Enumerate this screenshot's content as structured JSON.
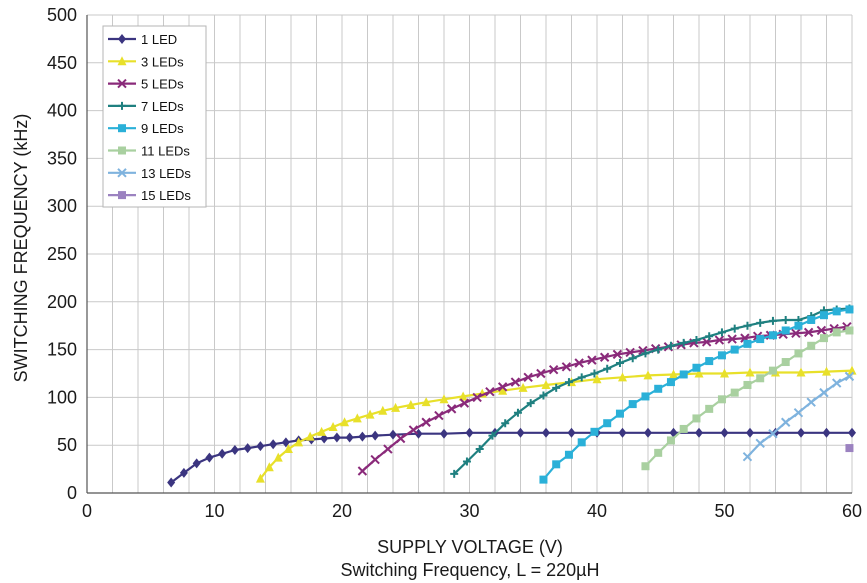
{
  "chart_data": {
    "type": "line",
    "title": "",
    "caption": "Switching Frequency, L = 220µH",
    "xlabel": "SUPPLY VOLTAGE (V)",
    "ylabel": "SWITCHING FREQUENCY (kHz)",
    "xlim": [
      0,
      60
    ],
    "ylim": [
      0,
      500
    ],
    "x_ticks": [
      "0",
      "10",
      "20",
      "30",
      "40",
      "50",
      "60"
    ],
    "y_ticks": [
      "0",
      "50",
      "100",
      "150",
      "200",
      "250",
      "300",
      "350",
      "400",
      "450",
      "500"
    ],
    "grid": true,
    "legend_position": "top-left",
    "series": [
      {
        "name": "1 LED",
        "color": "#3b3580",
        "marker": "diamond",
        "x": [
          6.6,
          7.6,
          8.6,
          9.6,
          10.6,
          11.6,
          12.6,
          13.6,
          14.6,
          15.6,
          16.6,
          17.6,
          18.6,
          19.6,
          20.6,
          21.6,
          22.6,
          24,
          26,
          28,
          30,
          32,
          34,
          36,
          38,
          40,
          42,
          44,
          46,
          48,
          50,
          52,
          54,
          56,
          58,
          60
        ],
        "y": [
          11,
          21,
          31,
          37,
          41,
          45,
          47,
          49,
          51,
          53,
          55,
          56,
          57,
          58,
          58,
          59,
          60,
          61,
          62,
          62,
          63,
          63,
          63,
          63,
          63,
          63,
          63,
          63,
          63,
          63,
          63,
          63,
          63,
          63,
          63,
          63
        ]
      },
      {
        "name": "3 LEDs",
        "color": "#e8e02a",
        "marker": "triangle",
        "x": [
          13.6,
          14.3,
          15,
          15.8,
          16.6,
          17.5,
          18.4,
          19.3,
          20.2,
          21.2,
          22.2,
          23.2,
          24.2,
          25.4,
          26.6,
          28,
          29.5,
          31,
          32.6,
          34.2,
          36,
          38,
          40,
          42,
          44,
          46,
          48,
          50,
          52,
          54,
          56,
          58,
          60
        ],
        "y": [
          15,
          27,
          37,
          46,
          53,
          59,
          64,
          69,
          74,
          78,
          82,
          86,
          89,
          92,
          95,
          98,
          101,
          104,
          107,
          110,
          113,
          116,
          119,
          121,
          123,
          124,
          125,
          125,
          126,
          126,
          126,
          127,
          128
        ]
      },
      {
        "name": "5 LEDs",
        "color": "#8a2a7a",
        "marker": "x",
        "x": [
          21.6,
          22.6,
          23.6,
          24.6,
          25.6,
          26.6,
          27.6,
          28.6,
          29.6,
          30.6,
          31.6,
          32.6,
          33.6,
          34.6,
          35.6,
          36.6,
          37.6,
          38.6,
          39.6,
          40.6,
          41.6,
          42.6,
          43.6,
          44.6,
          45.6,
          46.6,
          47.6,
          48.6,
          49.6,
          50.6,
          51.6,
          52.6,
          53.6,
          54.6,
          55.6,
          56.6,
          57.6,
          58.6,
          59.6
        ],
        "y": [
          23,
          35,
          46,
          57,
          66,
          74,
          81,
          88,
          94,
          100,
          106,
          111,
          116,
          121,
          125,
          129,
          132,
          136,
          139,
          142,
          145,
          147,
          149,
          151,
          153,
          155,
          157,
          158,
          160,
          161,
          162,
          164,
          165,
          166,
          167,
          168,
          170,
          172,
          174
        ]
      },
      {
        "name": "7 LEDs",
        "color": "#1f8080",
        "marker": "plus",
        "x": [
          28.8,
          29.8,
          30.8,
          31.8,
          32.8,
          33.8,
          34.8,
          35.8,
          36.8,
          37.8,
          38.8,
          39.8,
          40.8,
          41.8,
          42.8,
          43.8,
          44.8,
          45.8,
          46.8,
          47.8,
          48.8,
          49.8,
          50.8,
          51.8,
          52.8,
          53.8,
          54.8,
          55.8,
          56.8,
          57.8,
          58.8,
          59.8
        ],
        "y": [
          20,
          33,
          46,
          60,
          73,
          84,
          94,
          102,
          110,
          116,
          121,
          125,
          130,
          136,
          141,
          146,
          150,
          154,
          157,
          160,
          164,
          168,
          172,
          175,
          178,
          180,
          181,
          181,
          185,
          191,
          192,
          193
        ]
      },
      {
        "name": "9 LEDs",
        "color": "#2ab0d8",
        "marker": "square",
        "x": [
          35.8,
          36.8,
          37.8,
          38.8,
          39.8,
          40.8,
          41.8,
          42.8,
          43.8,
          44.8,
          45.8,
          46.8,
          47.8,
          48.8,
          49.8,
          50.8,
          51.8,
          52.8,
          53.8,
          54.8,
          55.8,
          56.8,
          57.8,
          58.8,
          59.8
        ],
        "y": [
          14,
          30,
          40,
          53,
          64,
          73,
          83,
          93,
          101,
          109,
          116,
          124,
          131,
          138,
          144,
          150,
          156,
          161,
          165,
          170,
          175,
          181,
          186,
          190,
          192
        ]
      },
      {
        "name": "11 LEDs",
        "color": "#a9d0a0",
        "marker": "square",
        "x": [
          43.8,
          44.8,
          45.8,
          46.8,
          47.8,
          48.8,
          49.8,
          50.8,
          51.8,
          52.8,
          53.8,
          54.8,
          55.8,
          56.8,
          57.8,
          58.8,
          59.8
        ],
        "y": [
          28,
          42,
          55,
          67,
          78,
          88,
          98,
          105,
          113,
          120,
          128,
          137,
          146,
          154,
          162,
          168,
          170
        ]
      },
      {
        "name": "13 LEDs",
        "color": "#7fb3de",
        "marker": "x",
        "x": [
          51.8,
          52.8,
          53.8,
          54.8,
          55.8,
          56.8,
          57.8,
          58.8,
          59.8
        ],
        "y": [
          38,
          52,
          62,
          74,
          84,
          95,
          105,
          115,
          122
        ]
      },
      {
        "name": "15 LEDs",
        "color": "#9b82c0",
        "marker": "square",
        "x": [
          59.8
        ],
        "y": [
          47
        ]
      }
    ]
  }
}
